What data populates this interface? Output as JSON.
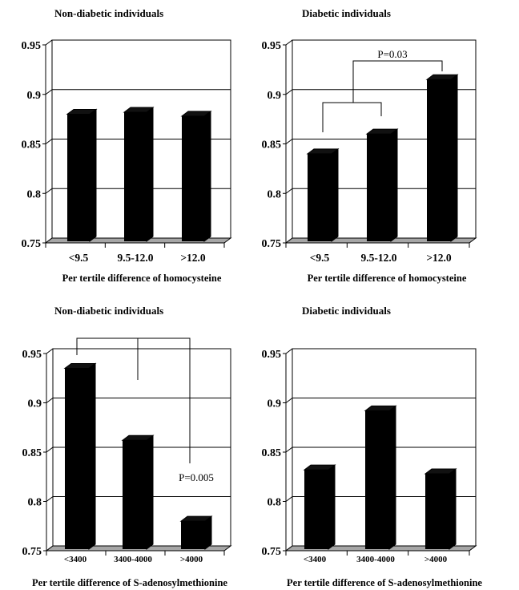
{
  "chart_data": [
    {
      "type": "bar",
      "title": "Non-diabetic individuals",
      "xlabel": "Per tertile difference of homocysteine",
      "ylabel": "",
      "categories": [
        "<9.5",
        "9.5-12.0",
        ">12.0"
      ],
      "values": [
        0.88,
        0.882,
        0.878
      ],
      "ylim": [
        0.75,
        0.95
      ],
      "yticks": [
        "0.95",
        "0.9",
        "0.85",
        "0.8",
        "0.75"
      ],
      "grid": true,
      "annotation": ""
    },
    {
      "type": "bar",
      "title": "Diabetic individuals",
      "xlabel": "Per tertile difference of homocysteine",
      "ylabel": "",
      "categories": [
        "<9.5",
        "9.5-12.0",
        ">12.0"
      ],
      "values": [
        0.84,
        0.86,
        0.915
      ],
      "ylim": [
        0.75,
        0.95
      ],
      "yticks": [
        "0.95",
        "0.9",
        "0.85",
        "0.8",
        "0.75"
      ],
      "grid": true,
      "annotation": "P=0.03"
    },
    {
      "type": "bar",
      "title": "Non-diabetic individuals",
      "xlabel": "Per tertile difference of S-adenosylmethionine",
      "ylabel": "",
      "categories": [
        "<3400",
        "3400-4000",
        ">4000"
      ],
      "values": [
        0.935,
        0.862,
        0.78
      ],
      "ylim": [
        0.75,
        0.95
      ],
      "yticks": [
        "0.95",
        "0.9",
        "0.85",
        "0.8",
        "0.75"
      ],
      "grid": true,
      "annotation": "P=0.005"
    },
    {
      "type": "bar",
      "title": "Diabetic individuals",
      "xlabel": "Per tertile difference of S-adenosylmethionine",
      "ylabel": "",
      "categories": [
        "<3400",
        "3400-4000",
        ">4000"
      ],
      "values": [
        0.832,
        0.892,
        0.828
      ],
      "ylim": [
        0.75,
        0.95
      ],
      "yticks": [
        "0.95",
        "0.9",
        "0.85",
        "0.8",
        "0.75"
      ],
      "grid": true,
      "annotation": ""
    }
  ],
  "colors": {
    "bar_front": "#000000",
    "bar_top": "#111111",
    "floor": "#a6a6a6",
    "grid": "#000000"
  }
}
